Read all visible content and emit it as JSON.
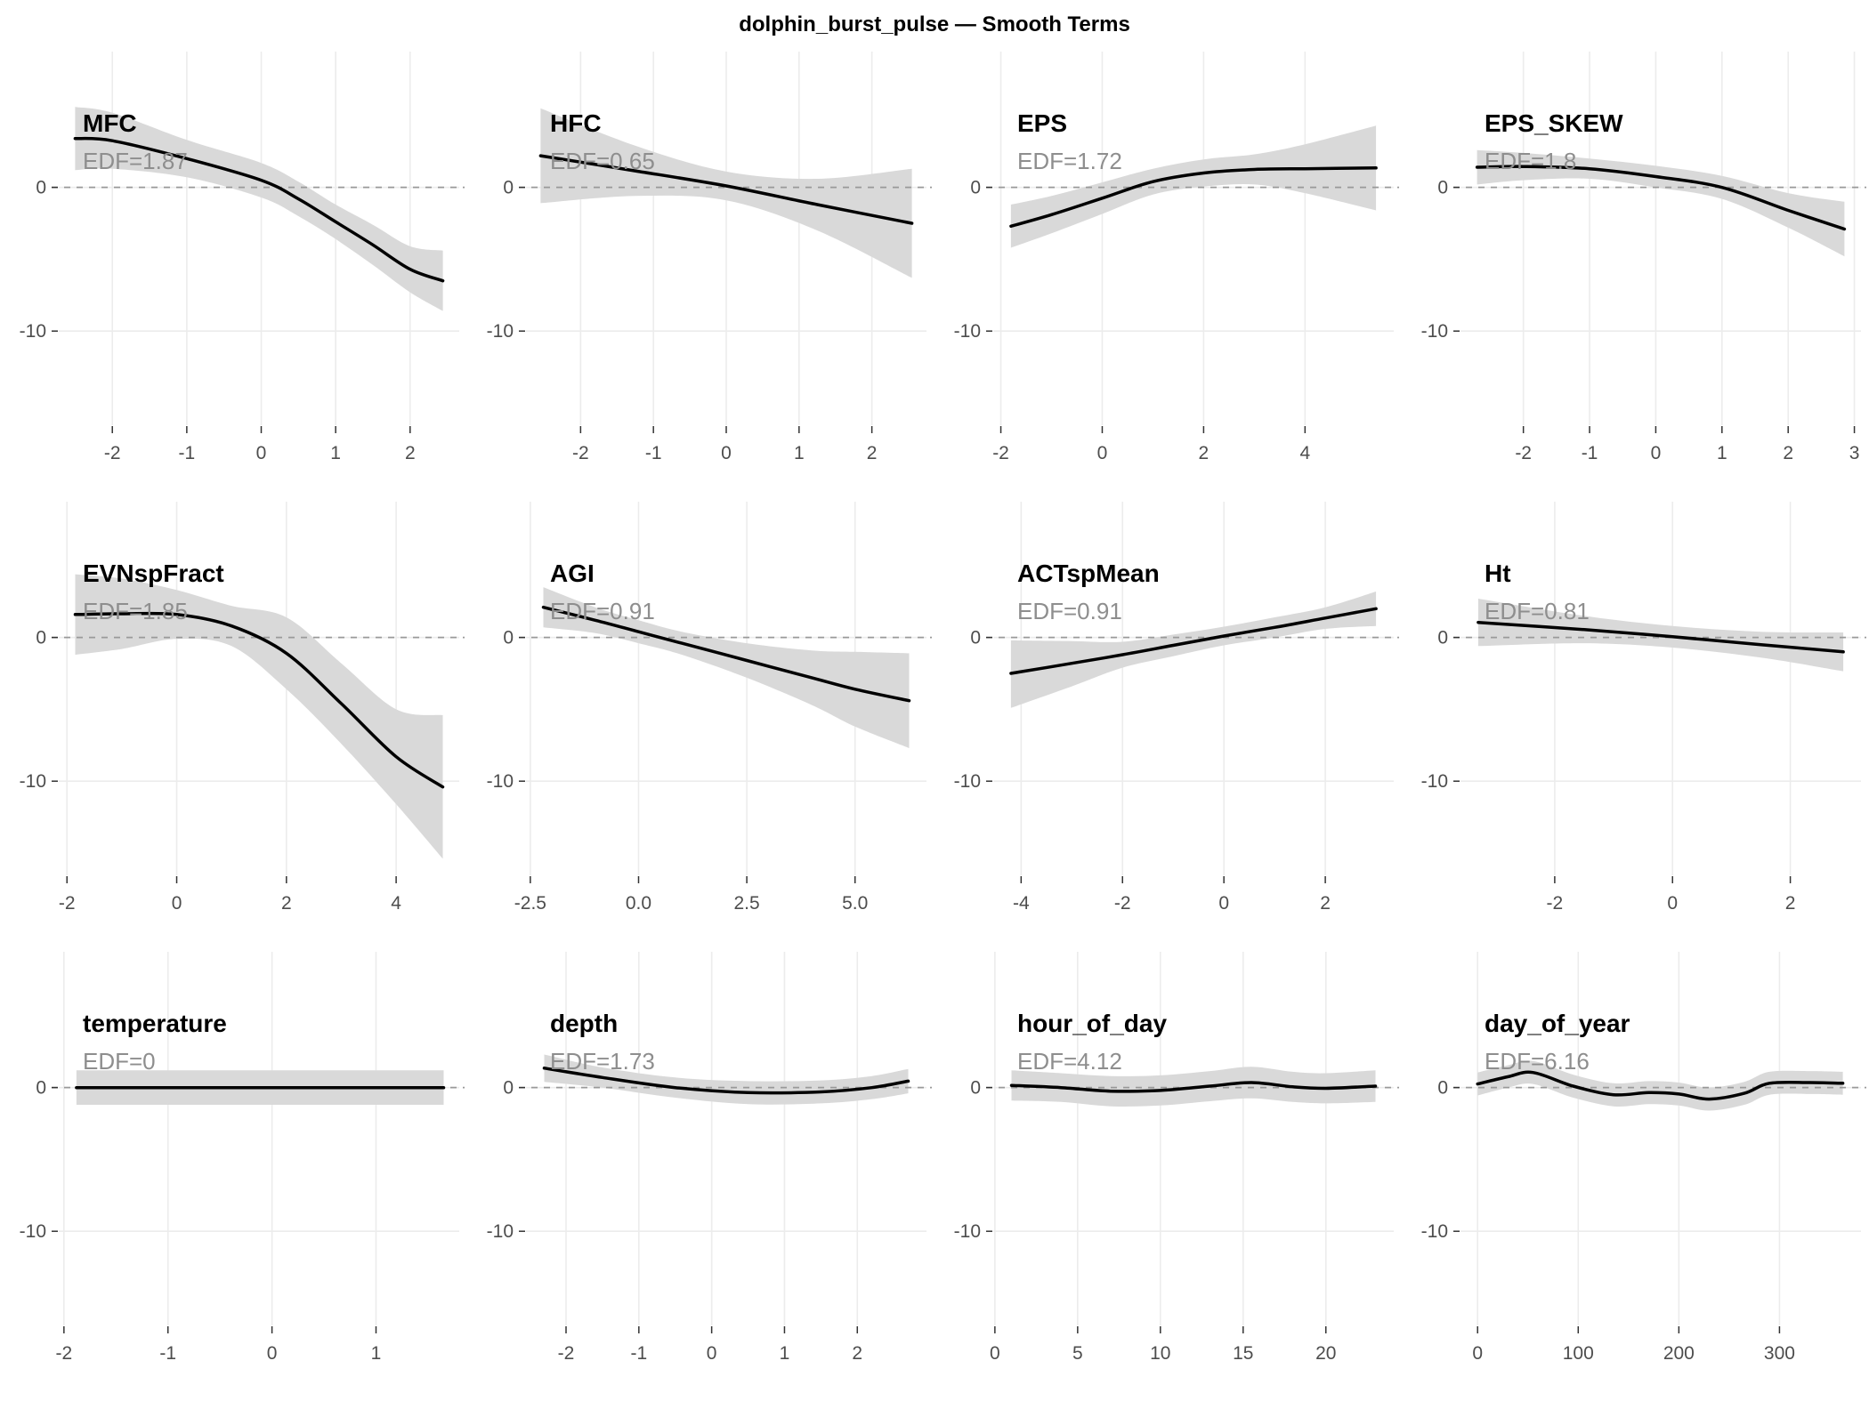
{
  "page_title": "dolphin_burst_pulse — Smooth Terms",
  "theme": {
    "curve_color": "#000000",
    "ribbon_color": "#d9d9d9",
    "grid_color": "#ececec",
    "zero_line_color": "#999999",
    "axis_text_color": "#4d4d4d",
    "tick_mark_color": "#333333",
    "panel_title_color": "#000000",
    "edf_color": "#8e8e8e"
  },
  "chart_data": [
    {
      "type": "line",
      "name": "MFC",
      "edf_label": "EDF=1.87",
      "xlim": [
        -2.72,
        2.66
      ],
      "ylim": [
        -16.55,
        9.45
      ],
      "x_tick_values": [
        -2,
        -1,
        0,
        1,
        2
      ],
      "x_tick_labels": [
        "-2",
        "-1",
        "0",
        "1",
        "2"
      ],
      "y_tick_values": [
        0,
        -10
      ],
      "y_tick_labels": [
        "0",
        "-10"
      ],
      "x": [
        -2.5,
        -2,
        -1,
        0,
        0.5,
        1,
        1.5,
        2,
        2.44
      ],
      "y": [
        3.4,
        3.25,
        2.0,
        0.5,
        -0.8,
        -2.4,
        -4.0,
        -5.7,
        -6.5
      ],
      "hi": [
        5.6,
        5.2,
        3.3,
        1.7,
        0.4,
        -1.2,
        -2.6,
        -4.1,
        -4.4
      ],
      "lo": [
        1.2,
        1.3,
        0.7,
        -0.7,
        -2.0,
        -3.6,
        -5.4,
        -7.3,
        -8.6
      ]
    },
    {
      "type": "line",
      "name": "HFC",
      "edf_label": "EDF=0.65",
      "xlim": [
        -2.75,
        2.75
      ],
      "ylim": [
        -16.55,
        9.45
      ],
      "x_tick_values": [
        -2,
        -1,
        0,
        1,
        2
      ],
      "x_tick_labels": [
        "-2",
        "-1",
        "0",
        "1",
        "2"
      ],
      "y_tick_values": [
        0,
        -10
      ],
      "y_tick_labels": [
        "0",
        "-10"
      ],
      "x": [
        -2.55,
        -1.25,
        0,
        1.25,
        2.55
      ],
      "y": [
        2.2,
        1.15,
        0.1,
        -1.2,
        -2.5
      ],
      "hi": [
        5.5,
        2.9,
        1.1,
        0.6,
        1.3
      ],
      "lo": [
        -1.1,
        -0.6,
        -0.9,
        -3.0,
        -6.3
      ]
    },
    {
      "type": "line",
      "name": "EPS",
      "edf_label": "EDF=1.72",
      "xlim": [
        -2.15,
        5.75
      ],
      "ylim": [
        -16.55,
        9.45
      ],
      "x_tick_values": [
        -2,
        0,
        2,
        4
      ],
      "x_tick_labels": [
        "-2",
        "0",
        "2",
        "4"
      ],
      "y_tick_values": [
        0,
        -10
      ],
      "y_tick_labels": [
        "0",
        "-10"
      ],
      "x": [
        -1.8,
        -1,
        0,
        1,
        2,
        3,
        4,
        5.4
      ],
      "y": [
        -2.7,
        -1.9,
        -0.75,
        0.4,
        1.0,
        1.25,
        1.3,
        1.35
      ],
      "hi": [
        -1.2,
        -0.6,
        0.35,
        1.3,
        1.95,
        2.3,
        3.0,
        4.3
      ],
      "lo": [
        -4.2,
        -3.2,
        -1.85,
        -0.5,
        0.05,
        0.2,
        -0.4,
        -1.6
      ]
    },
    {
      "type": "line",
      "name": "EPS_SKEW",
      "edf_label": "EDF=1.8",
      "xlim": [
        -2.95,
        3.1
      ],
      "ylim": [
        -16.55,
        9.45
      ],
      "x_tick_values": [
        -2,
        -1,
        0,
        1,
        2,
        3
      ],
      "x_tick_labels": [
        "-2",
        "-1",
        "0",
        "1",
        "2",
        "3"
      ],
      "y_tick_values": [
        0,
        -10
      ],
      "y_tick_labels": [
        "0",
        "-10"
      ],
      "x": [
        -2.7,
        -2,
        -1,
        0,
        1,
        2,
        2.85
      ],
      "y": [
        1.4,
        1.45,
        1.3,
        0.75,
        0.0,
        -1.6,
        -2.9
      ],
      "hi": [
        2.6,
        2.4,
        2.0,
        1.5,
        0.8,
        -0.4,
        -1.0
      ],
      "lo": [
        0.2,
        0.5,
        0.6,
        0.0,
        -0.8,
        -2.8,
        -4.8
      ]
    },
    {
      "type": "line",
      "name": "EVNspFract",
      "edf_label": "EDF=1.85",
      "xlim": [
        -2.15,
        5.15
      ],
      "ylim": [
        -16.55,
        9.45
      ],
      "x_tick_values": [
        -2,
        0,
        2,
        4
      ],
      "x_tick_labels": [
        "-2",
        "0",
        "2",
        "4"
      ],
      "y_tick_values": [
        0,
        -10
      ],
      "y_tick_labels": [
        "0",
        "-10"
      ],
      "x": [
        -1.85,
        -1,
        0,
        1,
        2,
        3,
        4,
        4.85
      ],
      "y": [
        1.6,
        1.65,
        1.6,
        0.8,
        -1.1,
        -4.6,
        -8.3,
        -10.4
      ],
      "hi": [
        4.4,
        4.1,
        3.3,
        2.2,
        1.4,
        -1.8,
        -5.0,
        -5.4
      ],
      "lo": [
        -1.2,
        -0.8,
        -0.1,
        -0.6,
        -3.6,
        -7.4,
        -11.6,
        -15.4
      ]
    },
    {
      "type": "line",
      "name": "AGI",
      "edf_label": "EDF=0.91",
      "xlim": [
        -2.6,
        6.65
      ],
      "ylim": [
        -16.55,
        9.45
      ],
      "x_tick_values": [
        -2.5,
        0,
        2.5,
        5
      ],
      "x_tick_labels": [
        "-2.5",
        "0.0",
        "2.5",
        "5.0"
      ],
      "y_tick_values": [
        0,
        -10
      ],
      "y_tick_labels": [
        "0",
        "-10"
      ],
      "x": [
        -2.2,
        -1,
        0,
        1,
        2.5,
        4,
        5,
        6.25
      ],
      "y": [
        2.1,
        1.2,
        0.4,
        -0.4,
        -1.6,
        -2.8,
        -3.6,
        -4.4
      ],
      "hi": [
        3.5,
        2.1,
        1.2,
        0.4,
        -0.4,
        -0.9,
        -1.0,
        -1.1
      ],
      "lo": [
        0.7,
        0.3,
        -0.4,
        -1.2,
        -2.8,
        -4.7,
        -6.2,
        -7.7
      ]
    },
    {
      "type": "line",
      "name": "ACTspMean",
      "edf_label": "EDF=0.91",
      "xlim": [
        -4.55,
        3.35
      ],
      "ylim": [
        -16.55,
        9.45
      ],
      "x_tick_values": [
        -4,
        -2,
        0,
        2
      ],
      "x_tick_labels": [
        "-4",
        "-2",
        "0",
        "2"
      ],
      "y_tick_values": [
        0,
        -10
      ],
      "y_tick_labels": [
        "0",
        "-10"
      ],
      "x": [
        -4.2,
        -3,
        -2,
        -1,
        0,
        1,
        2,
        3.0
      ],
      "y": [
        -2.5,
        -1.8,
        -1.2,
        -0.55,
        0.1,
        0.7,
        1.35,
        2.0
      ],
      "hi": [
        -0.2,
        -0.25,
        -0.3,
        0.2,
        0.75,
        1.4,
        2.1,
        3.2
      ],
      "lo": [
        -4.9,
        -3.4,
        -2.1,
        -1.3,
        -0.55,
        0.0,
        0.6,
        0.8
      ]
    },
    {
      "type": "line",
      "name": "Ht",
      "edf_label": "EDF=0.81",
      "xlim": [
        -3.6,
        3.2
      ],
      "ylim": [
        -16.55,
        9.45
      ],
      "x_tick_values": [
        -2,
        0,
        2
      ],
      "x_tick_labels": [
        "-2",
        "0",
        "2"
      ],
      "y_tick_values": [
        0,
        -10
      ],
      "y_tick_labels": [
        "0",
        "-10"
      ],
      "x": [
        -3.3,
        -1.5,
        0,
        1.5,
        2.9
      ],
      "y": [
        1.05,
        0.55,
        0.05,
        -0.5,
        -1.0
      ],
      "hi": [
        2.7,
        1.5,
        0.8,
        0.4,
        0.35
      ],
      "lo": [
        -0.6,
        -0.4,
        -0.7,
        -1.4,
        -2.35
      ]
    },
    {
      "type": "line",
      "name": "temperature",
      "edf_label": "EDF=0",
      "xlim": [
        -2.05,
        1.8
      ],
      "ylim": [
        -16.55,
        9.45
      ],
      "x_tick_values": [
        -2,
        -1,
        0,
        1
      ],
      "x_tick_labels": [
        "-2",
        "-1",
        "0",
        "1"
      ],
      "y_tick_values": [
        0,
        -10
      ],
      "y_tick_labels": [
        "0",
        "-10"
      ],
      "x": [
        -1.88,
        -1,
        0,
        1,
        1.65
      ],
      "y": [
        0,
        0,
        0,
        0,
        0
      ],
      "hi": [
        1.2,
        1.2,
        1.2,
        1.2,
        1.2
      ],
      "lo": [
        -1.2,
        -1.2,
        -1.2,
        -1.2,
        -1.2
      ]
    },
    {
      "type": "line",
      "name": "depth",
      "edf_label": "EDF=1.73",
      "xlim": [
        -2.55,
        2.95
      ],
      "ylim": [
        -16.55,
        9.45
      ],
      "x_tick_values": [
        -2,
        -1,
        0,
        1,
        2
      ],
      "x_tick_labels": [
        "-2",
        "-1",
        "0",
        "1",
        "2"
      ],
      "y_tick_values": [
        0,
        -10
      ],
      "y_tick_labels": [
        "0",
        "-10"
      ],
      "x": [
        -2.3,
        -1.5,
        -0.5,
        0.5,
        1.5,
        2.2,
        2.7
      ],
      "y": [
        1.35,
        0.7,
        0.0,
        -0.35,
        -0.3,
        0.0,
        0.45
      ],
      "hi": [
        2.3,
        1.4,
        0.7,
        0.45,
        0.5,
        0.8,
        1.3
      ],
      "lo": [
        0.4,
        0.0,
        -0.7,
        -1.15,
        -1.1,
        -0.8,
        -0.4
      ]
    },
    {
      "type": "line",
      "name": "hour_of_day",
      "edf_label": "EDF=4.12",
      "xlim": [
        -0.1,
        24.1
      ],
      "ylim": [
        -16.55,
        9.45
      ],
      "x_tick_values": [
        0,
        5,
        10,
        15,
        20
      ],
      "x_tick_labels": [
        "0",
        "5",
        "10",
        "15",
        "20"
      ],
      "y_tick_values": [
        0,
        -10
      ],
      "y_tick_labels": [
        "0",
        "-10"
      ],
      "x": [
        1,
        4,
        7,
        10,
        13,
        15.5,
        18,
        20,
        23
      ],
      "y": [
        0.15,
        0.0,
        -0.25,
        -0.2,
        0.1,
        0.35,
        0.05,
        -0.05,
        0.1
      ],
      "hi": [
        1.2,
        1.0,
        0.8,
        0.85,
        1.15,
        1.45,
        1.1,
        1.0,
        1.2
      ],
      "lo": [
        -0.9,
        -1.0,
        -1.3,
        -1.25,
        -0.95,
        -0.75,
        -1.0,
        -1.1,
        -1.0
      ]
    },
    {
      "type": "line",
      "name": "day_of_year",
      "edf_label": "EDF=6.16",
      "xlim": [
        -17,
        381
      ],
      "ylim": [
        -16.55,
        9.45
      ],
      "x_tick_values": [
        0,
        100,
        200,
        300
      ],
      "x_tick_labels": [
        "0",
        "100",
        "200",
        "300"
      ],
      "y_tick_values": [
        0,
        -10
      ],
      "y_tick_labels": [
        "0",
        "-10"
      ],
      "x": [
        0,
        30,
        55,
        95,
        135,
        170,
        200,
        230,
        265,
        290,
        330,
        363
      ],
      "y": [
        0.25,
        0.75,
        1.05,
        0.1,
        -0.5,
        -0.35,
        -0.45,
        -0.8,
        -0.4,
        0.3,
        0.35,
        0.3
      ],
      "hi": [
        1.05,
        1.55,
        1.85,
        0.9,
        0.3,
        0.45,
        0.35,
        0.0,
        0.4,
        1.1,
        1.15,
        1.1
      ],
      "lo": [
        -0.55,
        0.0,
        0.25,
        -0.7,
        -1.3,
        -1.15,
        -1.25,
        -1.6,
        -1.2,
        -0.5,
        -0.45,
        -0.5
      ]
    }
  ]
}
